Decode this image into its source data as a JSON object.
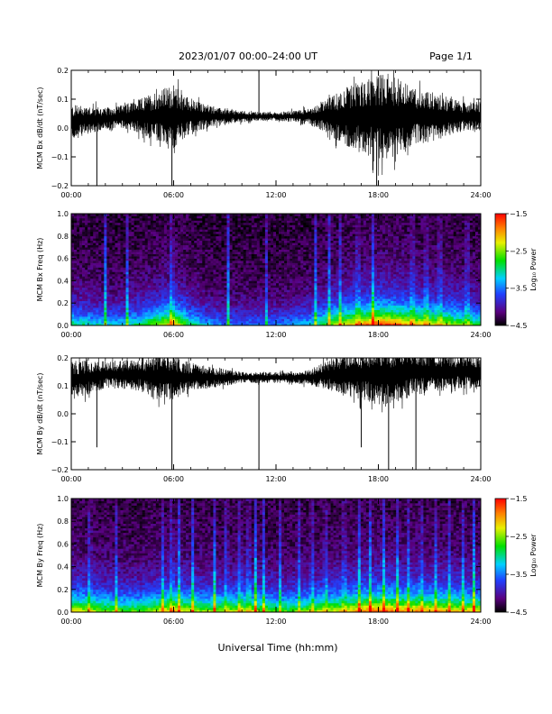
{
  "header": {
    "title": "2023/01/07  00:00–24:00 UT",
    "page": "Page 1/1"
  },
  "chart_data": [
    {
      "type": "line",
      "ylabel": "MCM Bx dB/dt (nT/sec)",
      "xlim": [
        0,
        24
      ],
      "ylim": [
        -0.2,
        0.2
      ],
      "x_ticks": [
        "00:00",
        "06:00",
        "12:00",
        "18:00",
        "24:00"
      ],
      "y_ticks": [
        "−0.2",
        "−0.1",
        "0.0",
        "0.1",
        "0.2"
      ],
      "y_tick_values": [
        -0.2,
        -0.1,
        0.0,
        0.1,
        0.2
      ],
      "series": [
        {
          "envelope_hours": [
            0,
            1,
            2,
            3,
            4,
            5,
            6,
            7,
            8,
            9,
            10,
            11,
            12,
            13,
            14,
            15,
            16,
            17,
            18,
            19,
            20,
            21,
            22,
            23,
            24
          ],
          "baseline": [
            0.02,
            0.03,
            0.03,
            0.04,
            0.04,
            0.04,
            0.04,
            0.04,
            0.04,
            0.04,
            0.04,
            0.04,
            0.04,
            0.04,
            0.04,
            0.04,
            0.04,
            0.04,
            0.04,
            0.04,
            0.04,
            0.04,
            0.04,
            0.04,
            0.04
          ],
          "amplitude": [
            0.06,
            0.05,
            0.04,
            0.04,
            0.06,
            0.09,
            0.11,
            0.06,
            0.04,
            0.025,
            0.02,
            0.015,
            0.015,
            0.02,
            0.03,
            0.06,
            0.1,
            0.12,
            0.15,
            0.14,
            0.1,
            0.09,
            0.07,
            0.05,
            0.05
          ],
          "spikes": [
            {
              "x": 1.5,
              "y": -0.2
            },
            {
              "x": 5.9,
              "y": -0.2
            },
            {
              "x": 11.0,
              "y": 0.2
            },
            {
              "x": 17.9,
              "y": -0.2
            }
          ]
        }
      ]
    },
    {
      "type": "heatmap",
      "ylabel": "MCM Bx Freq (Hz)",
      "xlim": [
        0,
        24
      ],
      "ylim": [
        0,
        1
      ],
      "x_ticks": [
        "00:00",
        "06:00",
        "12:00",
        "18:00",
        "24:00"
      ],
      "y_ticks": [
        "0.0",
        "0.2",
        "0.4",
        "0.6",
        "0.8",
        "1.0"
      ],
      "y_tick_values": [
        0,
        0.2,
        0.4,
        0.6,
        0.8,
        1.0
      ],
      "colorbar": {
        "label": "Log₁₀ Power",
        "range": [
          -4.5,
          -1.5
        ],
        "ticks": [
          "−1.5",
          "−2.5",
          "−3.5",
          "−4.5"
        ],
        "tick_values": [
          -1.5,
          -2.5,
          -3.5,
          -4.5
        ]
      },
      "activity_hours": [
        0,
        1,
        2,
        3,
        4,
        5,
        6,
        7,
        8,
        9,
        10,
        11,
        12,
        13,
        14,
        15,
        16,
        17,
        18,
        19,
        20,
        21,
        22,
        23,
        24
      ],
      "activity": [
        0.5,
        0.45,
        0.4,
        0.4,
        0.5,
        0.65,
        0.8,
        0.5,
        0.35,
        0.3,
        0.3,
        0.3,
        0.3,
        0.35,
        0.4,
        0.6,
        0.75,
        0.85,
        0.95,
        0.9,
        0.8,
        0.75,
        0.7,
        0.6,
        0.55
      ],
      "streak_hours": [
        2.0,
        3.3,
        5.9,
        9.2,
        11.4,
        14.3,
        15.1,
        15.8,
        16.8,
        17.7,
        20.0,
        20.8,
        21.6,
        23.2
      ],
      "colorscale": "rainbow (black-purple-blue-cyan-green-yellow-red)"
    },
    {
      "type": "line",
      "ylabel": "MCM By dB/dt (nT/sec)",
      "xlim": [
        0,
        24
      ],
      "ylim": [
        -0.2,
        0.2
      ],
      "x_ticks": [
        "00:00",
        "06:00",
        "12:00",
        "18:00",
        "24:00"
      ],
      "y_ticks": [
        "−0.2",
        "−0.1",
        "0.0",
        "0.1",
        "0.2"
      ],
      "y_tick_values": [
        -0.2,
        -0.1,
        0.0,
        0.1,
        0.2
      ],
      "series": [
        {
          "envelope_hours": [
            0,
            1,
            2,
            3,
            4,
            5,
            6,
            7,
            8,
            9,
            10,
            11,
            12,
            13,
            14,
            15,
            16,
            17,
            18,
            19,
            20,
            21,
            22,
            23,
            24
          ],
          "baseline": [
            0.12,
            0.13,
            0.14,
            0.14,
            0.14,
            0.13,
            0.13,
            0.13,
            0.13,
            0.13,
            0.13,
            0.13,
            0.13,
            0.13,
            0.13,
            0.14,
            0.14,
            0.14,
            0.14,
            0.14,
            0.15,
            0.15,
            0.15,
            0.15,
            0.15
          ],
          "amplitude": [
            0.07,
            0.06,
            0.05,
            0.05,
            0.06,
            0.08,
            0.08,
            0.05,
            0.04,
            0.03,
            0.02,
            0.02,
            0.02,
            0.02,
            0.03,
            0.05,
            0.08,
            0.09,
            0.11,
            0.1,
            0.09,
            0.08,
            0.07,
            0.06,
            0.06
          ],
          "spikes": [
            {
              "x": 1.5,
              "y": -0.12
            },
            {
              "x": 5.9,
              "y": -0.2
            },
            {
              "x": 11.0,
              "y": -0.2
            },
            {
              "x": 17.0,
              "y": -0.12
            },
            {
              "x": 18.6,
              "y": -0.2
            },
            {
              "x": 20.2,
              "y": -0.2
            }
          ]
        }
      ]
    },
    {
      "type": "heatmap",
      "ylabel": "MCM By Freq (Hz)",
      "xlim": [
        0,
        24
      ],
      "ylim": [
        0,
        1
      ],
      "x_ticks": [
        "00:00",
        "06:00",
        "12:00",
        "18:00",
        "24:00"
      ],
      "y_ticks": [
        "0.0",
        "0.2",
        "0.4",
        "0.6",
        "0.8",
        "1.0"
      ],
      "y_tick_values": [
        0,
        0.2,
        0.4,
        0.6,
        0.8,
        1.0
      ],
      "colorbar": {
        "label": "Log₁₀ Power",
        "range": [
          -4.5,
          -1.5
        ],
        "ticks": [
          "−1.5",
          "−2.5",
          "−3.5",
          "−4.5"
        ],
        "tick_values": [
          -1.5,
          -2.5,
          -3.5,
          -4.5
        ]
      },
      "activity_hours": [
        0,
        1,
        2,
        3,
        4,
        5,
        6,
        7,
        8,
        9,
        10,
        11,
        12,
        13,
        14,
        15,
        16,
        17,
        18,
        19,
        20,
        21,
        22,
        23,
        24
      ],
      "activity": [
        0.75,
        0.7,
        0.65,
        0.6,
        0.6,
        0.7,
        0.8,
        0.7,
        0.65,
        0.65,
        0.7,
        0.65,
        0.6,
        0.6,
        0.65,
        0.7,
        0.75,
        0.85,
        0.9,
        0.85,
        0.85,
        0.8,
        0.8,
        0.75,
        0.75
      ],
      "streak_hours": [
        1.1,
        2.6,
        5.4,
        5.9,
        6.3,
        7.1,
        8.4,
        9.1,
        9.9,
        10.4,
        10.8,
        11.3,
        12.2,
        13.4,
        14.1,
        14.9,
        16.0,
        16.9,
        17.5,
        18.3,
        19.1,
        19.8,
        20.5,
        21.4,
        22.2,
        23.0,
        23.6
      ],
      "colorscale": "rainbow (black-purple-blue-cyan-green-yellow-red)"
    }
  ],
  "xlabel": "Universal Time (hh:mm)"
}
